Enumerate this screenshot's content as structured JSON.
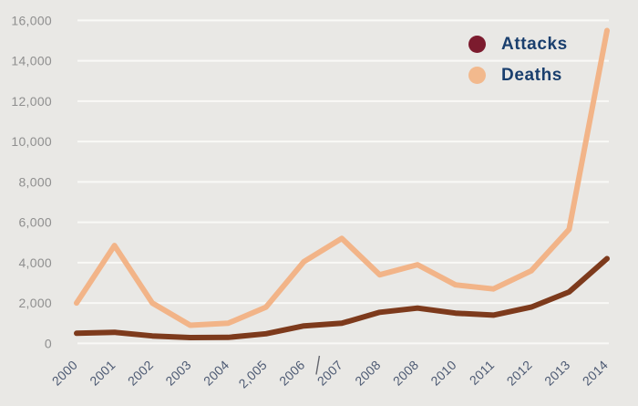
{
  "chart_data": {
    "type": "line",
    "title": "",
    "xlabel": "",
    "ylabel": "",
    "categories": [
      "2000",
      "2001",
      "2002",
      "2003",
      "2004",
      "2,005",
      "2006",
      "2007",
      "2008",
      "2008",
      "2010",
      "2011",
      "2012",
      "2013",
      "2014"
    ],
    "series": [
      {
        "name": "Attacks",
        "swatch_color": "#7c1b2e",
        "line_color": "#7d3a1c",
        "values": [
          500,
          550,
          370,
          290,
          300,
          480,
          870,
          1000,
          1540,
          1750,
          1500,
          1400,
          1800,
          2550,
          4200
        ]
      },
      {
        "name": "Deaths",
        "swatch_color": "#f2b98d",
        "line_color": "#f2b488",
        "values": [
          2000,
          4850,
          2000,
          900,
          1000,
          1800,
          4050,
          5200,
          3400,
          3900,
          2900,
          2700,
          3600,
          5650,
          15500
        ]
      }
    ],
    "ylim": [
      0,
      16000
    ],
    "ytick_step": 2000,
    "ytick_labels": [
      "0",
      "2,000",
      "4,000",
      "6,000",
      "8,000",
      "10,000",
      "12,000",
      "14,000",
      "16,000"
    ],
    "grid": "horizontal-only",
    "legend_position": "top-right",
    "text_cursor_after_label": "2006"
  },
  "colors": {
    "background": "#e9e8e5",
    "gridline": "#f9f9f6",
    "y_tick_label": "#8f8f8f",
    "x_tick_label": "#4d5a73",
    "legend_text": "#1a3f6e",
    "text_cursor": "#63656d"
  }
}
